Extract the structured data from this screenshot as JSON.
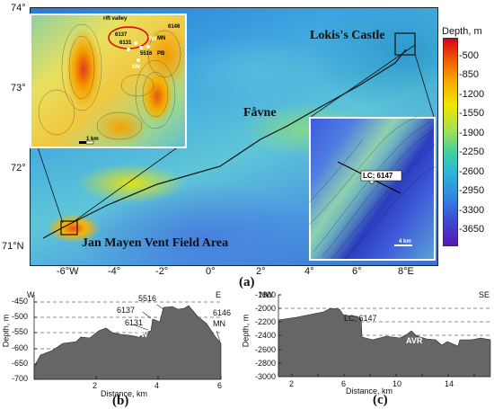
{
  "map": {
    "lat_ticks": [
      "74°",
      "73°",
      "72°",
      "71°N"
    ],
    "lon_ticks": [
      "-6°W",
      "-4°",
      "-2°",
      "0°",
      "2°",
      "4°",
      "6°",
      "8°E"
    ],
    "sites": {
      "lokis": "Lokis's Castle",
      "favne": "Fåvne",
      "jan_mayen": "Jan Mayen Vent Field Area"
    },
    "panel_label": "(a)"
  },
  "inset_a": {
    "labels": [
      "rift valley",
      "6146",
      "6137",
      "MN",
      "6131",
      "TW",
      "5516",
      "PB",
      "SM"
    ],
    "scale": "1 km"
  },
  "inset_b": {
    "station": "LC; 6147",
    "scale": "4 km"
  },
  "colorbar": {
    "title": "Depth, m",
    "ticks": [
      "-500",
      "-850",
      "-1200",
      "-1550",
      "-1900",
      "-2250",
      "-2600",
      "-2950",
      "-3300",
      "-3650"
    ],
    "colors": [
      "#d7001a",
      "#f25a00",
      "#f5a500",
      "#f0e600",
      "#9fe05a",
      "#3fd0a0",
      "#2fb5d8",
      "#2f80e0",
      "#4040d0",
      "#5a18b0"
    ]
  },
  "profile_b": {
    "panel_label": "(b)",
    "ylabel": "Depth, m",
    "xlabel": "Distance, km",
    "west": "W",
    "east": "E",
    "y_ticks": [
      "-450",
      "-500",
      "-550",
      "-600",
      "-650",
      "-700"
    ],
    "x_ticks": [
      "2",
      "4",
      "6"
    ],
    "annotations": [
      "5516",
      "6137",
      "6131",
      "TW",
      "6146",
      "MN"
    ]
  },
  "profile_c": {
    "panel_label": "(c)",
    "ylabel": "Depth, m",
    "xlabel": "Distance, km",
    "west": "NW",
    "east": "SE",
    "y_ticks": [
      "-1800",
      "-2000",
      "-2200",
      "-2400",
      "-2600",
      "-2800",
      "-3000"
    ],
    "x_ticks": [
      "2",
      "6",
      "10",
      "14"
    ],
    "x_ticks_mid": [
      "4",
      "8",
      "12"
    ],
    "annotations": [
      "LC; 6147",
      "AVR"
    ]
  }
}
